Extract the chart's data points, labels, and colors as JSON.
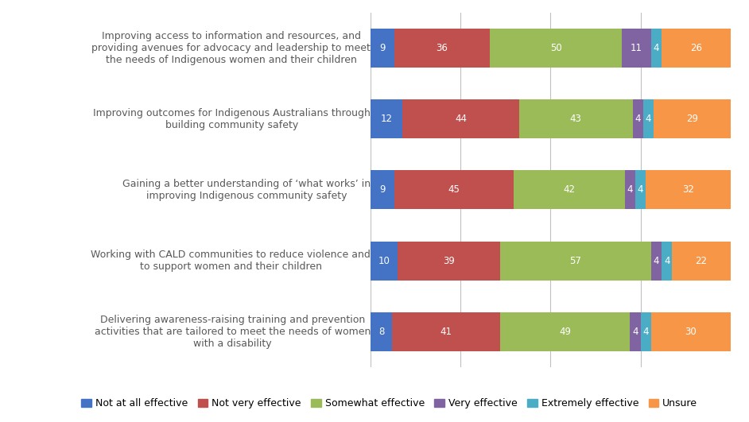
{
  "categories": [
    "Improving access to information and resources, and\nproviding avenues for advocacy and leadership to meet\nthe needs of Indigenous women and their children",
    "Improving outcomes for Indigenous Australians through\nbuilding community safety",
    "Gaining a better understanding of ‘what works’ in\nimproving Indigenous community safety",
    "Working with CALD communities to reduce violence and\nto support women and their children",
    "Delivering awareness-raising training and prevention\nactivities that are tailored to meet the needs of women\nwith a disability"
  ],
  "series": {
    "Not at all effective": [
      9,
      12,
      9,
      10,
      8
    ],
    "Not very effective": [
      36,
      44,
      45,
      39,
      41
    ],
    "Somewhat effective": [
      50,
      43,
      42,
      57,
      49
    ],
    "Very effective": [
      11,
      4,
      4,
      4,
      4
    ],
    "Extremely effective": [
      4,
      4,
      4,
      4,
      4
    ],
    "Unsure": [
      26,
      29,
      32,
      22,
      30
    ]
  },
  "colors": {
    "Not at all effective": "#4472c4",
    "Not very effective": "#c0504d",
    "Somewhat effective": "#9bbb59",
    "Very effective": "#8064a2",
    "Extremely effective": "#4bacc6",
    "Unsure": "#f79646"
  },
  "legend_order": [
    "Not at all effective",
    "Not very effective",
    "Somewhat effective",
    "Very effective",
    "Extremely effective",
    "Unsure"
  ],
  "bar_height": 0.55,
  "figsize": [
    9.42,
    5.31
  ],
  "dpi": 100,
  "label_fontsize": 8.5,
  "tick_fontsize": 9,
  "legend_fontsize": 9,
  "background_color": "#ffffff",
  "text_color": "#595959",
  "grid_color": "#c0c0c0"
}
